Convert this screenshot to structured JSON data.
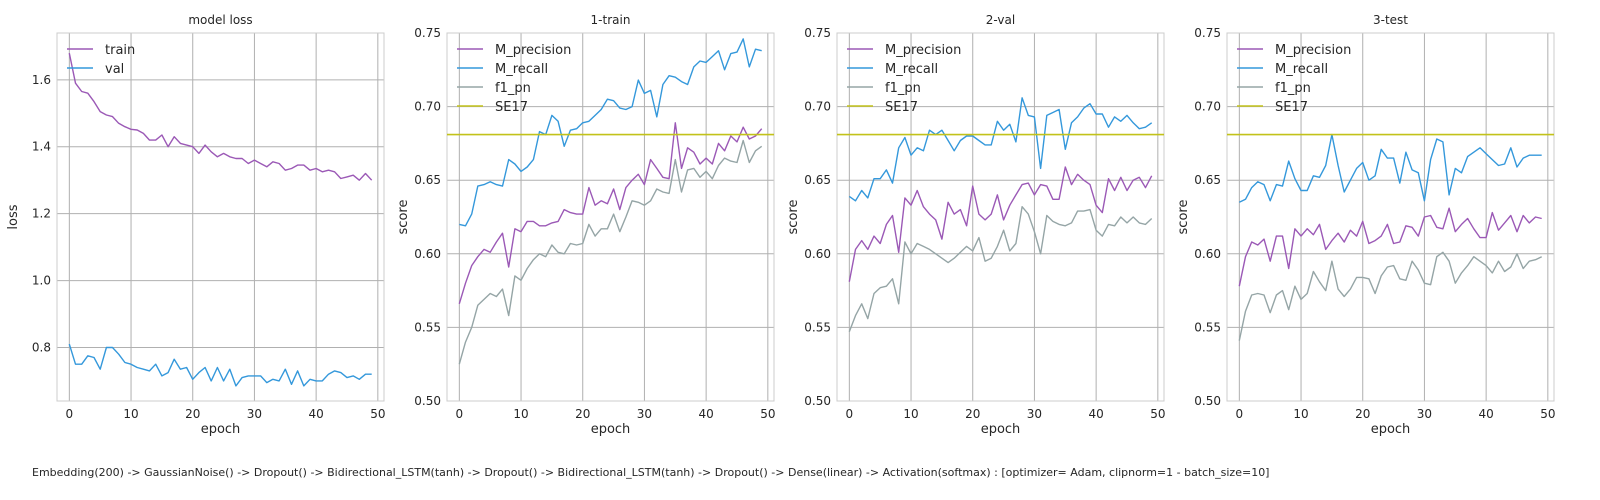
{
  "figure": {
    "caption": "Embedding(200) -> GaussianNoise() -> Dropout() -> Bidirectional_LSTM(tanh) -> Dropout() -> Bidirectional_LSTM(tanh) -> Dropout() -> Dense(linear) -> Activation(softmax) : [optimizer= Adam, clipnorm=1 - batch_size=10]"
  },
  "colors": {
    "purple": "#9b59b6",
    "blue": "#3498db",
    "gray": "#95a5a6",
    "olive": "#c2c21a",
    "grid": "#b0b0b0"
  },
  "chart_data": [
    {
      "type": "line",
      "title": "model loss",
      "xlabel": "epoch",
      "ylabel": "loss",
      "xlim": [
        -2,
        51
      ],
      "ylim": [
        0.64,
        1.74
      ],
      "xticks": [
        0,
        10,
        20,
        30,
        40,
        50
      ],
      "yticks": [
        0.8,
        1.0,
        1.2,
        1.4,
        1.6
      ],
      "ytick_labels": [
        "0.8",
        "1.0",
        "1.2",
        "1.4",
        "1.6"
      ],
      "grid": true,
      "legend": "upper-left",
      "series": [
        {
          "name": "train",
          "color": "#9b59b6",
          "values": [
            1.68,
            1.59,
            1.565,
            1.56,
            1.535,
            1.505,
            1.495,
            1.49,
            1.47,
            1.46,
            1.452,
            1.45,
            1.44,
            1.42,
            1.42,
            1.435,
            1.4,
            1.43,
            1.41,
            1.405,
            1.4,
            1.38,
            1.405,
            1.385,
            1.37,
            1.38,
            1.37,
            1.365,
            1.365,
            1.35,
            1.36,
            1.35,
            1.34,
            1.355,
            1.35,
            1.33,
            1.335,
            1.345,
            1.345,
            1.33,
            1.335,
            1.325,
            1.33,
            1.325,
            1.305,
            1.31,
            1.315,
            1.3,
            1.32,
            1.3
          ]
        },
        {
          "name": "val",
          "color": "#3498db",
          "values": [
            0.81,
            0.75,
            0.75,
            0.775,
            0.77,
            0.735,
            0.8,
            0.8,
            0.78,
            0.755,
            0.75,
            0.74,
            0.735,
            0.73,
            0.75,
            0.715,
            0.725,
            0.765,
            0.735,
            0.74,
            0.705,
            0.725,
            0.74,
            0.7,
            0.74,
            0.7,
            0.735,
            0.685,
            0.71,
            0.715,
            0.715,
            0.715,
            0.695,
            0.705,
            0.7,
            0.735,
            0.69,
            0.73,
            0.685,
            0.705,
            0.7,
            0.7,
            0.72,
            0.73,
            0.725,
            0.71,
            0.715,
            0.705,
            0.72,
            0.72
          ]
        }
      ]
    },
    {
      "type": "line",
      "title": "1-train",
      "xlabel": "epoch",
      "ylabel": "score",
      "xlim": [
        -2,
        51
      ],
      "ylim": [
        0.5,
        0.75
      ],
      "xticks": [
        0,
        10,
        20,
        30,
        40,
        50
      ],
      "yticks": [
        0.5,
        0.55,
        0.6,
        0.65,
        0.7,
        0.75
      ],
      "ytick_labels": [
        "0.50",
        "0.55",
        "0.60",
        "0.65",
        "0.70",
        "0.75"
      ],
      "grid": true,
      "legend": "upper-left",
      "series": [
        {
          "name": "M_precision",
          "color": "#9b59b6",
          "values": [
            0.566,
            0.58,
            0.592,
            0.598,
            0.603,
            0.601,
            0.608,
            0.614,
            0.591,
            0.617,
            0.615,
            0.622,
            0.622,
            0.619,
            0.619,
            0.621,
            0.622,
            0.63,
            0.628,
            0.627,
            0.627,
            0.645,
            0.633,
            0.636,
            0.634,
            0.644,
            0.63,
            0.645,
            0.65,
            0.654,
            0.647,
            0.664,
            0.658,
            0.652,
            0.651,
            0.689,
            0.658,
            0.672,
            0.669,
            0.661,
            0.665,
            0.661,
            0.675,
            0.67,
            0.68,
            0.676,
            0.686,
            0.678,
            0.68,
            0.685
          ]
        },
        {
          "name": "M_recall",
          "color": "#3498db",
          "values": [
            0.62,
            0.619,
            0.627,
            0.646,
            0.647,
            0.649,
            0.647,
            0.646,
            0.664,
            0.661,
            0.656,
            0.659,
            0.664,
            0.683,
            0.681,
            0.694,
            0.69,
            0.673,
            0.684,
            0.685,
            0.689,
            0.69,
            0.694,
            0.698,
            0.705,
            0.704,
            0.699,
            0.698,
            0.7,
            0.718,
            0.709,
            0.711,
            0.693,
            0.715,
            0.721,
            0.72,
            0.717,
            0.715,
            0.727,
            0.731,
            0.73,
            0.734,
            0.738,
            0.725,
            0.736,
            0.737,
            0.746,
            0.727,
            0.739,
            0.738
          ]
        },
        {
          "name": "f1_pn",
          "color": "#95a5a6",
          "values": [
            0.525,
            0.54,
            0.55,
            0.565,
            0.569,
            0.573,
            0.571,
            0.576,
            0.558,
            0.585,
            0.582,
            0.59,
            0.596,
            0.6,
            0.598,
            0.606,
            0.601,
            0.6,
            0.607,
            0.606,
            0.607,
            0.62,
            0.612,
            0.617,
            0.617,
            0.627,
            0.615,
            0.625,
            0.636,
            0.635,
            0.633,
            0.636,
            0.644,
            0.642,
            0.641,
            0.664,
            0.642,
            0.657,
            0.658,
            0.652,
            0.656,
            0.651,
            0.66,
            0.665,
            0.663,
            0.662,
            0.677,
            0.662,
            0.67,
            0.673
          ]
        },
        {
          "name": "SE17",
          "color": "#c2c21a",
          "hline": 0.681
        }
      ]
    },
    {
      "type": "line",
      "title": "2-val",
      "xlabel": "epoch",
      "ylabel": "score",
      "xlim": [
        -2,
        51
      ],
      "ylim": [
        0.5,
        0.75
      ],
      "xticks": [
        0,
        10,
        20,
        30,
        40,
        50
      ],
      "yticks": [
        0.5,
        0.55,
        0.6,
        0.65,
        0.7,
        0.75
      ],
      "ytick_labels": [
        "0.50",
        "0.55",
        "0.60",
        "0.65",
        "0.70",
        "0.75"
      ],
      "grid": true,
      "legend": "upper-left",
      "series": [
        {
          "name": "M_precision",
          "color": "#9b59b6",
          "values": [
            0.581,
            0.603,
            0.609,
            0.603,
            0.612,
            0.607,
            0.62,
            0.626,
            0.601,
            0.638,
            0.633,
            0.643,
            0.632,
            0.627,
            0.623,
            0.61,
            0.635,
            0.627,
            0.63,
            0.619,
            0.646,
            0.627,
            0.623,
            0.627,
            0.64,
            0.623,
            0.633,
            0.64,
            0.647,
            0.648,
            0.64,
            0.647,
            0.646,
            0.637,
            0.637,
            0.659,
            0.647,
            0.654,
            0.65,
            0.647,
            0.633,
            0.628,
            0.651,
            0.643,
            0.652,
            0.643,
            0.65,
            0.652,
            0.645,
            0.653
          ]
        },
        {
          "name": "M_recall",
          "color": "#3498db",
          "values": [
            0.639,
            0.636,
            0.643,
            0.638,
            0.651,
            0.651,
            0.657,
            0.648,
            0.672,
            0.679,
            0.667,
            0.672,
            0.67,
            0.684,
            0.681,
            0.684,
            0.677,
            0.67,
            0.677,
            0.68,
            0.68,
            0.677,
            0.674,
            0.674,
            0.69,
            0.684,
            0.688,
            0.676,
            0.706,
            0.694,
            0.693,
            0.658,
            0.694,
            0.696,
            0.698,
            0.671,
            0.689,
            0.693,
            0.699,
            0.702,
            0.695,
            0.695,
            0.686,
            0.693,
            0.69,
            0.694,
            0.689,
            0.685,
            0.686,
            0.689
          ]
        },
        {
          "name": "f1_pn",
          "color": "#95a5a6",
          "values": [
            0.547,
            0.558,
            0.566,
            0.556,
            0.573,
            0.577,
            0.578,
            0.583,
            0.566,
            0.608,
            0.6,
            0.607,
            0.605,
            0.603,
            0.6,
            0.597,
            0.594,
            0.597,
            0.601,
            0.605,
            0.602,
            0.611,
            0.595,
            0.597,
            0.605,
            0.616,
            0.602,
            0.607,
            0.632,
            0.627,
            0.615,
            0.6,
            0.626,
            0.622,
            0.62,
            0.619,
            0.621,
            0.629,
            0.629,
            0.63,
            0.616,
            0.612,
            0.62,
            0.619,
            0.625,
            0.621,
            0.625,
            0.621,
            0.62,
            0.624
          ]
        },
        {
          "name": "SE17",
          "color": "#c2c21a",
          "hline": 0.681
        }
      ]
    },
    {
      "type": "line",
      "title": "3-test",
      "xlabel": "epoch",
      "ylabel": "score",
      "xlim": [
        -2,
        51
      ],
      "ylim": [
        0.5,
        0.75
      ],
      "xticks": [
        0,
        10,
        20,
        30,
        40,
        50
      ],
      "yticks": [
        0.5,
        0.55,
        0.6,
        0.65,
        0.7,
        0.75
      ],
      "ytick_labels": [
        "0.50",
        "0.55",
        "0.60",
        "0.65",
        "0.70",
        "0.75"
      ],
      "grid": true,
      "legend": "upper-left",
      "series": [
        {
          "name": "M_precision",
          "color": "#9b59b6",
          "values": [
            0.578,
            0.598,
            0.608,
            0.606,
            0.61,
            0.595,
            0.612,
            0.612,
            0.59,
            0.617,
            0.612,
            0.617,
            0.613,
            0.62,
            0.603,
            0.609,
            0.614,
            0.608,
            0.616,
            0.612,
            0.622,
            0.607,
            0.609,
            0.612,
            0.62,
            0.607,
            0.608,
            0.619,
            0.618,
            0.612,
            0.625,
            0.626,
            0.618,
            0.617,
            0.631,
            0.615,
            0.62,
            0.624,
            0.617,
            0.611,
            0.611,
            0.628,
            0.616,
            0.621,
            0.626,
            0.615,
            0.626,
            0.621,
            0.625,
            0.624
          ]
        },
        {
          "name": "M_recall",
          "color": "#3498db",
          "values": [
            0.635,
            0.637,
            0.645,
            0.649,
            0.647,
            0.636,
            0.647,
            0.646,
            0.663,
            0.651,
            0.643,
            0.643,
            0.653,
            0.652,
            0.66,
            0.681,
            0.66,
            0.642,
            0.65,
            0.658,
            0.662,
            0.65,
            0.653,
            0.671,
            0.665,
            0.665,
            0.648,
            0.669,
            0.657,
            0.655,
            0.636,
            0.664,
            0.678,
            0.676,
            0.64,
            0.658,
            0.655,
            0.666,
            0.669,
            0.672,
            0.668,
            0.664,
            0.66,
            0.661,
            0.672,
            0.659,
            0.665,
            0.667,
            0.667,
            0.667
          ]
        },
        {
          "name": "f1_pn",
          "color": "#95a5a6",
          "values": [
            0.541,
            0.561,
            0.572,
            0.573,
            0.572,
            0.56,
            0.572,
            0.575,
            0.562,
            0.578,
            0.569,
            0.573,
            0.588,
            0.581,
            0.575,
            0.595,
            0.576,
            0.571,
            0.576,
            0.584,
            0.584,
            0.583,
            0.573,
            0.585,
            0.591,
            0.592,
            0.583,
            0.582,
            0.595,
            0.589,
            0.58,
            0.579,
            0.598,
            0.601,
            0.595,
            0.58,
            0.587,
            0.592,
            0.598,
            0.595,
            0.592,
            0.587,
            0.595,
            0.588,
            0.591,
            0.6,
            0.59,
            0.595,
            0.596,
            0.598
          ]
        },
        {
          "name": "SE17",
          "color": "#c2c21a",
          "hline": 0.681
        }
      ]
    }
  ]
}
